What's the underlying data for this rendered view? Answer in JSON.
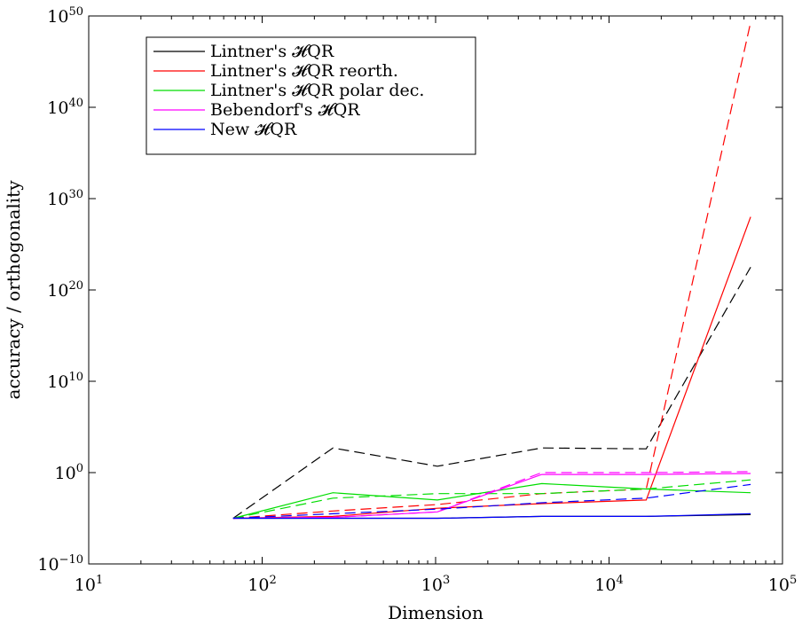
{
  "chart_data": {
    "type": "line",
    "xlabel": "Dimension",
    "ylabel": "accuracy / orthogonality",
    "xscale": "log",
    "yscale": "log",
    "xlim": [
      10,
      100000
    ],
    "ylim": [
      1e-10,
      1e+50
    ],
    "grid": false,
    "legend_position": "top-left",
    "x_ticks": [
      {
        "base": "10",
        "exp": "1"
      },
      {
        "base": "10",
        "exp": "2"
      },
      {
        "base": "10",
        "exp": "3"
      },
      {
        "base": "10",
        "exp": "4"
      },
      {
        "base": "10",
        "exp": "5"
      }
    ],
    "y_ticks": [
      {
        "base": "10",
        "exp": "−10"
      },
      {
        "base": "10",
        "exp": "0"
      },
      {
        "base": "10",
        "exp": "10"
      },
      {
        "base": "10",
        "exp": "20"
      },
      {
        "base": "10",
        "exp": "30"
      },
      {
        "base": "10",
        "exp": "40"
      },
      {
        "base": "10",
        "exp": "50"
      }
    ],
    "x": [
      68,
      256,
      1024,
      4096,
      16384,
      65536
    ],
    "y_exponent_note": "values are log10(y)",
    "series": [
      {
        "name": "Lintner's HQR",
        "color": "#000000",
        "style": "solid",
        "log10_values": [
          -5.0,
          -5.0,
          -5.0,
          -4.8,
          -4.8,
          -4.6
        ]
      },
      {
        "name": "Lintner's HQR",
        "color": "#000000",
        "style": "dashed",
        "log10_values": [
          -5.0,
          2.7,
          0.7,
          2.7,
          2.6,
          22.5
        ]
      },
      {
        "name": "Lintner's HQR reorth.",
        "color": "#ff0000",
        "style": "solid",
        "log10_values": [
          -5.0,
          -4.8,
          -3.9,
          -3.4,
          -3.0,
          28.0
        ]
      },
      {
        "name": "Lintner's HQR reorth.",
        "color": "#ff0000",
        "style": "dashed",
        "log10_values": [
          -5.0,
          -4.2,
          -3.5,
          -2.3,
          -1.8,
          49.3
        ]
      },
      {
        "name": "Lintner's HQR polar dec.",
        "color": "#00dd00",
        "style": "solid",
        "log10_values": [
          -5.0,
          -2.2,
          -3.0,
          -1.2,
          -1.8,
          -2.2
        ]
      },
      {
        "name": "Lintner's HQR polar dec.",
        "color": "#00dd00",
        "style": "dashed",
        "log10_values": [
          -5.0,
          -2.8,
          -2.3,
          -2.3,
          -1.8,
          -0.8
        ]
      },
      {
        "name": "Bebendorf's HQR",
        "color": "#ff00ff",
        "style": "solid",
        "log10_values": [
          -5.0,
          -4.9,
          -4.3,
          -0.2,
          -0.2,
          -0.1
        ]
      },
      {
        "name": "Bebendorf's HQR",
        "color": "#ff00ff",
        "style": "dashed",
        "log10_values": [
          -5.0,
          -4.9,
          -4.3,
          0.0,
          0.0,
          0.1
        ]
      },
      {
        "name": "New HQR",
        "color": "#0000ff",
        "style": "solid",
        "log10_values": [
          -5.0,
          -5.0,
          -5.0,
          -4.8,
          -4.8,
          -4.5
        ]
      },
      {
        "name": "New HQR",
        "color": "#0000ff",
        "style": "dashed",
        "log10_values": [
          -5.0,
          -4.5,
          -4.0,
          -3.3,
          -2.8,
          -1.3
        ]
      }
    ],
    "legend": [
      {
        "label": "Lintner's 𝓗QR",
        "color": "#000000"
      },
      {
        "label": "Lintner's 𝓗QR reorth.",
        "color": "#ff0000"
      },
      {
        "label": "Lintner's 𝓗QR polar dec.",
        "color": "#00dd00"
      },
      {
        "label": "Bebendorf's 𝓗QR",
        "color": "#ff00ff"
      },
      {
        "label": "New 𝓗QR",
        "color": "#0000ff"
      }
    ]
  }
}
